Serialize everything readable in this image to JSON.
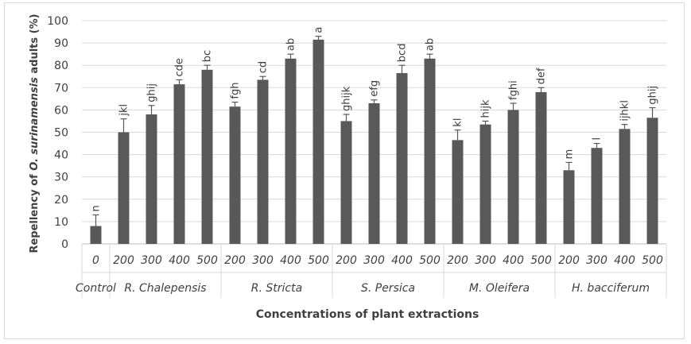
{
  "chart_data": {
    "type": "bar",
    "title": "",
    "xlabel": "Concentrations of plant extractions",
    "ylabel_parts": [
      "Repellency of ",
      "O. surinamensis",
      " adults (%)"
    ],
    "ylim": [
      0,
      100
    ],
    "yticks": [
      0,
      10,
      20,
      30,
      40,
      50,
      60,
      70,
      80,
      90,
      100
    ],
    "grid": true,
    "bar_color": "#595959",
    "groups": [
      {
        "name": "Control",
        "concentrations": [
          "0"
        ],
        "values": [
          8
        ],
        "errors": [
          5
        ],
        "letters": [
          "n"
        ]
      },
      {
        "name": "R. Chalepensis",
        "concentrations": [
          "200",
          "300",
          "400",
          "500"
        ],
        "values": [
          50,
          58,
          71.5,
          78
        ],
        "errors": [
          6,
          4,
          2,
          2
        ],
        "letters": [
          "jkl",
          "ghij",
          "cde",
          "bc"
        ]
      },
      {
        "name": "R. Stricta",
        "concentrations": [
          "200",
          "300",
          "400",
          "500"
        ],
        "values": [
          61.5,
          73.5,
          83,
          91.5
        ],
        "errors": [
          2,
          1.5,
          2,
          1.5
        ],
        "letters": [
          "fgh",
          "cd",
          "ab",
          "a"
        ]
      },
      {
        "name": "S. Persica",
        "concentrations": [
          "200",
          "300",
          "400",
          "500"
        ],
        "values": [
          55,
          63,
          76.5,
          83
        ],
        "errors": [
          3,
          1.5,
          3.5,
          2
        ],
        "letters": [
          "ghijk",
          "efg",
          "bcd",
          "ab"
        ]
      },
      {
        "name": "M. Oleifera",
        "concentrations": [
          "200",
          "300",
          "400",
          "500"
        ],
        "values": [
          46.5,
          53.5,
          60,
          68
        ],
        "errors": [
          4.5,
          1.5,
          3,
          2
        ],
        "letters": [
          "kl",
          "hijk",
          "fghi",
          "def"
        ]
      },
      {
        "name": "H. bacciferum",
        "concentrations": [
          "200",
          "300",
          "400",
          "500"
        ],
        "values": [
          33,
          43,
          51.5,
          56.5
        ],
        "errors": [
          3.5,
          2,
          2,
          4.5
        ],
        "letters": [
          "m",
          "l",
          "ijhkl",
          "ghij"
        ]
      }
    ]
  }
}
